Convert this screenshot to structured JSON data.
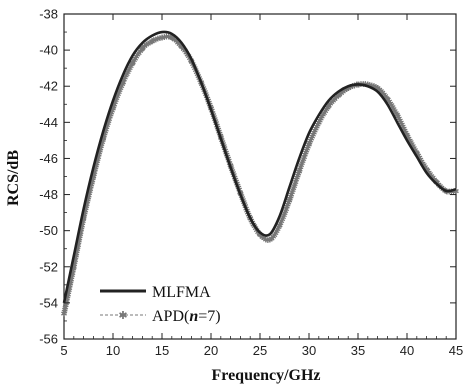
{
  "chart_data": {
    "type": "line",
    "title": "",
    "xlabel": "Frequency/GHz",
    "ylabel": "RCS/dB",
    "xlim": [
      5,
      45
    ],
    "ylim": [
      -56,
      -38
    ],
    "xticks": [
      5,
      10,
      15,
      20,
      25,
      30,
      35,
      40,
      45
    ],
    "yticks": [
      -56,
      -54,
      -52,
      -50,
      -48,
      -46,
      -44,
      -42,
      -40,
      -38
    ],
    "grid": false,
    "legend_position": "bottom-left",
    "series": [
      {
        "name": "MLFMA",
        "style": "solid",
        "color": "#222222",
        "x": [
          5,
          6,
          7,
          8,
          9,
          10,
          11,
          12,
          13,
          14,
          15,
          16,
          17,
          18,
          19,
          20,
          21,
          22,
          23,
          24,
          25,
          26,
          27,
          28,
          29,
          30,
          31,
          32,
          33,
          34,
          35,
          36,
          37,
          38,
          39,
          40,
          41,
          42,
          43,
          44,
          45
        ],
        "y": [
          -54.0,
          -51.4,
          -48.8,
          -46.5,
          -44.5,
          -42.8,
          -41.4,
          -40.3,
          -39.6,
          -39.2,
          -39.0,
          -39.1,
          -39.6,
          -40.5,
          -41.8,
          -43.3,
          -44.9,
          -46.5,
          -48.0,
          -49.3,
          -50.1,
          -50.2,
          -49.2,
          -47.6,
          -46.0,
          -44.6,
          -43.6,
          -42.8,
          -42.3,
          -42.0,
          -41.9,
          -42.0,
          -42.3,
          -43.0,
          -44.0,
          -45.0,
          -45.9,
          -46.8,
          -47.4,
          -47.8,
          -47.7
        ]
      },
      {
        "name": "APD(n=7)",
        "name_main": "APD(",
        "name_italic": "n",
        "name_tail": "=7)",
        "style": "dashed-markers",
        "color": "#777777",
        "x": [
          5,
          6,
          7,
          8,
          9,
          10,
          11,
          12,
          13,
          14,
          15,
          16,
          17,
          18,
          19,
          20,
          21,
          22,
          23,
          24,
          25,
          26,
          27,
          28,
          29,
          30,
          31,
          32,
          33,
          34,
          35,
          36,
          37,
          38,
          39,
          40,
          41,
          42,
          43,
          44,
          45
        ],
        "y": [
          -54.6,
          -52.0,
          -49.3,
          -47.0,
          -44.9,
          -43.2,
          -41.8,
          -40.7,
          -39.9,
          -39.5,
          -39.3,
          -39.3,
          -39.8,
          -40.6,
          -41.8,
          -43.2,
          -44.8,
          -46.4,
          -47.9,
          -49.3,
          -50.2,
          -50.5,
          -49.7,
          -48.3,
          -46.7,
          -45.2,
          -44.0,
          -43.1,
          -42.5,
          -42.1,
          -41.9,
          -41.9,
          -42.1,
          -42.7,
          -43.6,
          -44.7,
          -45.7,
          -46.6,
          -47.3,
          -47.8,
          -47.8
        ]
      }
    ]
  }
}
